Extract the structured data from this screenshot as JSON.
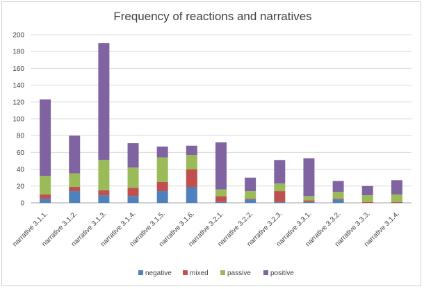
{
  "chart_data": {
    "type": "bar",
    "stacked": true,
    "title": "Frequency of reactions and narratives",
    "xlabel": "",
    "ylabel": "",
    "ylim": [
      0,
      200
    ],
    "yticks": [
      0,
      20,
      40,
      60,
      80,
      100,
      120,
      140,
      160,
      180,
      200
    ],
    "grid": true,
    "legend_position": "bottom",
    "categories": [
      "narrative 3.1.1.",
      "narrative 3.1.2.",
      "narrative 3.1.3.",
      "narrative 3.1.4.",
      "narrative 3.1.5.",
      "narrative 3.1.6.",
      "narrative 3.2.1.",
      "narrative 3.2.2.",
      "narrative 3.2.3.",
      "narrative 3.3.1.",
      "narrative 3.3.2.",
      "narrative 3.3.3.",
      "narrative 3.1.4."
    ],
    "series": [
      {
        "name": "negative",
        "color": "#4f81bd",
        "values": [
          5,
          14,
          9,
          8,
          14,
          19,
          1,
          4,
          1,
          1,
          4,
          0,
          0
        ]
      },
      {
        "name": "mixed",
        "color": "#c0504d",
        "values": [
          5,
          5,
          6,
          10,
          11,
          21,
          7,
          1,
          13,
          2,
          1,
          1,
          1
        ]
      },
      {
        "name": "passive",
        "color": "#9bbb59",
        "values": [
          22,
          16,
          36,
          24,
          29,
          17,
          8,
          9,
          9,
          5,
          8,
          8,
          9
        ]
      },
      {
        "name": "positive",
        "color": "#8064a2",
        "values": [
          91,
          45,
          139,
          29,
          13,
          11,
          56,
          16,
          28,
          45,
          13,
          11,
          17
        ]
      }
    ]
  }
}
